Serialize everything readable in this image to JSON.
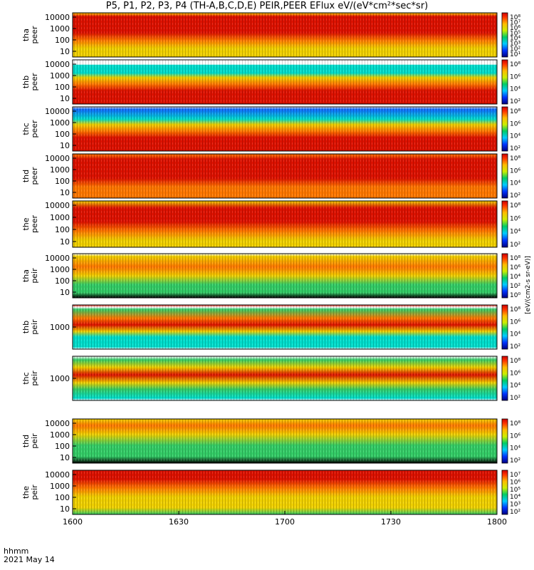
{
  "title": "P5, P1, P2, P3, P4 (TH-A,B,C,D,E) PEIR,PEER EFlux eV/(eV*cm²*sec*sr)",
  "footer": {
    "time_label": "hhmm",
    "date_label": "2021 May 14"
  },
  "colorbar_unit": "[eV/(cm2-s sr-eV)]",
  "colors": {
    "high": "#dd0000",
    "mid": "#ffcc00",
    "low": "#00aa66",
    "floor": "#000000"
  },
  "chart_data": {
    "type": "heatmap",
    "x_axis": {
      "ticks": [
        "1600",
        "1630",
        "1700",
        "1730",
        "1800"
      ]
    },
    "panels": [
      {
        "id": "tha-peer",
        "probe": "tha",
        "species": "peer",
        "y_ticks": [
          "10000",
          "1000",
          "100",
          "10"
        ],
        "colorbar_ticks": [
          "10⁸",
          "10⁷",
          "10⁶",
          "10⁵",
          "10⁴",
          "10³",
          "10²",
          "10¹"
        ],
        "profile": [
          [
            0,
            "mid"
          ],
          [
            0.08,
            "high"
          ],
          [
            0.45,
            "high"
          ],
          [
            0.62,
            "orange"
          ],
          [
            0.8,
            "yellow"
          ],
          [
            1,
            "yellow"
          ]
        ]
      },
      {
        "id": "thb-peer",
        "probe": "thb",
        "species": "peer",
        "y_ticks": [
          "10000",
          "1000",
          "100",
          "10"
        ],
        "colorbar_ticks": [
          "10⁸",
          "10⁶",
          "10⁴",
          "10²"
        ],
        "profile": [
          [
            0,
            "white"
          ],
          [
            0.1,
            "white"
          ],
          [
            0.12,
            "cyan"
          ],
          [
            0.3,
            "cyan"
          ],
          [
            0.4,
            "yellow"
          ],
          [
            0.55,
            "orange"
          ],
          [
            0.7,
            "high"
          ],
          [
            1,
            "high"
          ]
        ]
      },
      {
        "id": "thc-peer",
        "probe": "thc",
        "species": "peer",
        "y_ticks": [
          "10000",
          "1000",
          "100",
          "10"
        ],
        "colorbar_ticks": [
          "10⁸",
          "10⁶",
          "10⁴",
          "10²"
        ],
        "profile": [
          [
            0,
            "white"
          ],
          [
            0.05,
            "blue"
          ],
          [
            0.28,
            "cyan"
          ],
          [
            0.4,
            "yellow"
          ],
          [
            0.55,
            "orange"
          ],
          [
            0.7,
            "high"
          ],
          [
            1,
            "high"
          ]
        ]
      },
      {
        "id": "thd-peer",
        "probe": "thd",
        "species": "peer",
        "y_ticks": [
          "10000",
          "1000",
          "100",
          "10"
        ],
        "colorbar_ticks": [
          "10⁸",
          "10⁶",
          "10⁴",
          "10²"
        ],
        "profile": [
          [
            0,
            "orange"
          ],
          [
            0.12,
            "high"
          ],
          [
            0.55,
            "high"
          ],
          [
            0.75,
            "orange"
          ],
          [
            1,
            "orange"
          ]
        ]
      },
      {
        "id": "the-peer",
        "probe": "the",
        "species": "peer",
        "y_ticks": [
          "10000",
          "1000",
          "100",
          "10"
        ],
        "colorbar_ticks": [
          "10⁸",
          "10⁶",
          "10⁴",
          "10²"
        ],
        "profile": [
          [
            0,
            "yellow"
          ],
          [
            0.15,
            "high"
          ],
          [
            0.45,
            "high"
          ],
          [
            0.65,
            "orange"
          ],
          [
            0.85,
            "yellow"
          ],
          [
            1,
            "yellow"
          ]
        ]
      },
      {
        "id": "tha-peir",
        "probe": "tha",
        "species": "peir",
        "y_ticks": [
          "10000",
          "1000",
          "100",
          "10"
        ],
        "colorbar_ticks": [
          "10⁸",
          "10⁶",
          "10⁴",
          "10²",
          "10⁰"
        ],
        "profile": [
          [
            0,
            "white"
          ],
          [
            0.06,
            "yellow"
          ],
          [
            0.3,
            "orange"
          ],
          [
            0.5,
            "yellow"
          ],
          [
            0.7,
            "green"
          ],
          [
            0.88,
            "green"
          ],
          [
            1,
            "black"
          ]
        ]
      },
      {
        "id": "thb-peir",
        "probe": "thb",
        "species": "peir",
        "y_ticks": [
          "1000"
        ],
        "colorbar_ticks": [
          "10⁸",
          "10⁶",
          "10⁴",
          "10²"
        ],
        "profile": [
          [
            0,
            "high"
          ],
          [
            0.05,
            "white"
          ],
          [
            0.1,
            "green"
          ],
          [
            0.3,
            "orange"
          ],
          [
            0.45,
            "high"
          ],
          [
            0.6,
            "yellow"
          ],
          [
            0.72,
            "cyan"
          ],
          [
            0.95,
            "cyan"
          ],
          [
            1,
            "white"
          ]
        ]
      },
      {
        "id": "thc-peir",
        "probe": "thc",
        "species": "peir",
        "y_ticks": [
          "1000"
        ],
        "colorbar_ticks": [
          "10⁸",
          "10⁶",
          "10⁴",
          "10²"
        ],
        "profile": [
          [
            0,
            "white"
          ],
          [
            0.08,
            "green"
          ],
          [
            0.25,
            "yellow"
          ],
          [
            0.42,
            "high"
          ],
          [
            0.6,
            "yellow"
          ],
          [
            0.75,
            "green"
          ],
          [
            0.95,
            "cyan"
          ],
          [
            1,
            "white"
          ]
        ]
      },
      {
        "id": "thd-peir",
        "probe": "thd",
        "species": "peir",
        "y_ticks": [
          "10000",
          "1000",
          "100",
          "10"
        ],
        "colorbar_ticks": [
          "10⁸",
          "10⁶",
          "10⁴",
          "10²"
        ],
        "profile": [
          [
            0,
            "yellow"
          ],
          [
            0.15,
            "orange"
          ],
          [
            0.35,
            "yellow"
          ],
          [
            0.6,
            "green"
          ],
          [
            0.85,
            "green"
          ],
          [
            1,
            "black"
          ]
        ]
      },
      {
        "id": "the-peir",
        "probe": "the",
        "species": "peir",
        "y_ticks": [
          "10000",
          "1000",
          "100",
          "10"
        ],
        "colorbar_ticks": [
          "10⁷",
          "10⁶",
          "10⁵",
          "10⁴",
          "10³",
          "10²"
        ],
        "profile": [
          [
            0,
            "high"
          ],
          [
            0.2,
            "high"
          ],
          [
            0.4,
            "orange"
          ],
          [
            0.6,
            "yellow"
          ],
          [
            0.85,
            "yellow"
          ],
          [
            1,
            "green"
          ]
        ]
      }
    ]
  }
}
